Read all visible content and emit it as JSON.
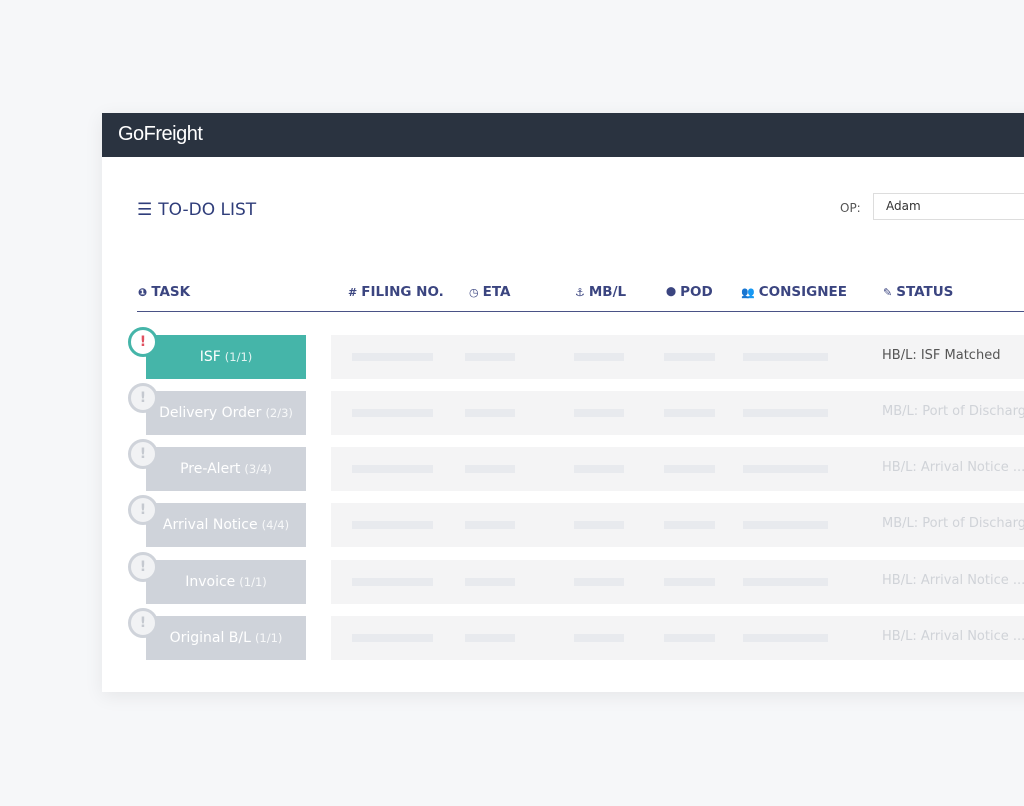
{
  "app": {
    "logo": "GoFreight"
  },
  "page": {
    "title": "TO-DO LIST",
    "op_label": "OP:",
    "op_value": "Adam"
  },
  "columns": [
    {
      "label": "TASK",
      "icon": "exclamation-circle-icon"
    },
    {
      "label": "FILING NO.",
      "icon": "hash-icon"
    },
    {
      "label": "ETA",
      "icon": "clock-icon"
    },
    {
      "label": "MB/L",
      "icon": "anchor-icon"
    },
    {
      "label": "POD",
      "icon": "map-pin-icon"
    },
    {
      "label": "CONSIGNEE",
      "icon": "users-icon"
    },
    {
      "label": "STATUS",
      "icon": "pencil-icon"
    }
  ],
  "rows": [
    {
      "task": "ISF",
      "count": "(1/1)",
      "status": "HB/L: ISF Matched",
      "active": true
    },
    {
      "task": "Delivery Order",
      "count": "(2/3)",
      "status": "MB/L: Port of Discharge",
      "active": false
    },
    {
      "task": "Pre-Alert",
      "count": "(3/4)",
      "status": "HB/L: Arrival Notice ...",
      "active": false
    },
    {
      "task": "Arrival Notice",
      "count": "(4/4)",
      "status": "MB/L: Port of Discharge",
      "active": false
    },
    {
      "task": "Invoice",
      "count": "(1/1)",
      "status": "HB/L: Arrival Notice ...",
      "active": false
    },
    {
      "task": "Original B/L",
      "count": "(1/1)",
      "status": "HB/L: Arrival Notice ...",
      "active": false
    }
  ],
  "colors": {
    "accent": "#45b5a9",
    "header": "#2a3340",
    "heading": "#2f3d7a",
    "alert": "#e05060"
  }
}
